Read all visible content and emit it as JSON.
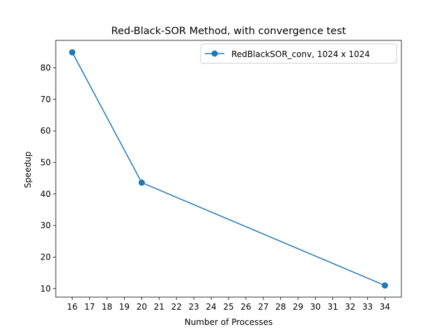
{
  "chart_data": {
    "type": "line",
    "title": "Red-Black-SOR Method, with convergence test",
    "xlabel": "Number of Processes",
    "ylabel": "Speedup",
    "x_ticks": [
      "16",
      "17",
      "18",
      "19",
      "20",
      "21",
      "22",
      "23",
      "24",
      "25",
      "26",
      "27",
      "28",
      "29",
      "30",
      "31",
      "32",
      "33",
      "34"
    ],
    "y_ticks": [
      "10",
      "20",
      "30",
      "40",
      "50",
      "60",
      "70",
      "80"
    ],
    "xlim": [
      15.05,
      34.95
    ],
    "ylim": [
      7.3,
      88.7
    ],
    "grid": false,
    "legend_position": "upper right",
    "series": [
      {
        "name": "RedBlackSOR_conv, 1024 x 1024",
        "color": "#1f77b4",
        "marker": "circle",
        "x": [
          16,
          20,
          34
        ],
        "y": [
          84.9,
          43.6,
          11.0
        ]
      }
    ]
  }
}
